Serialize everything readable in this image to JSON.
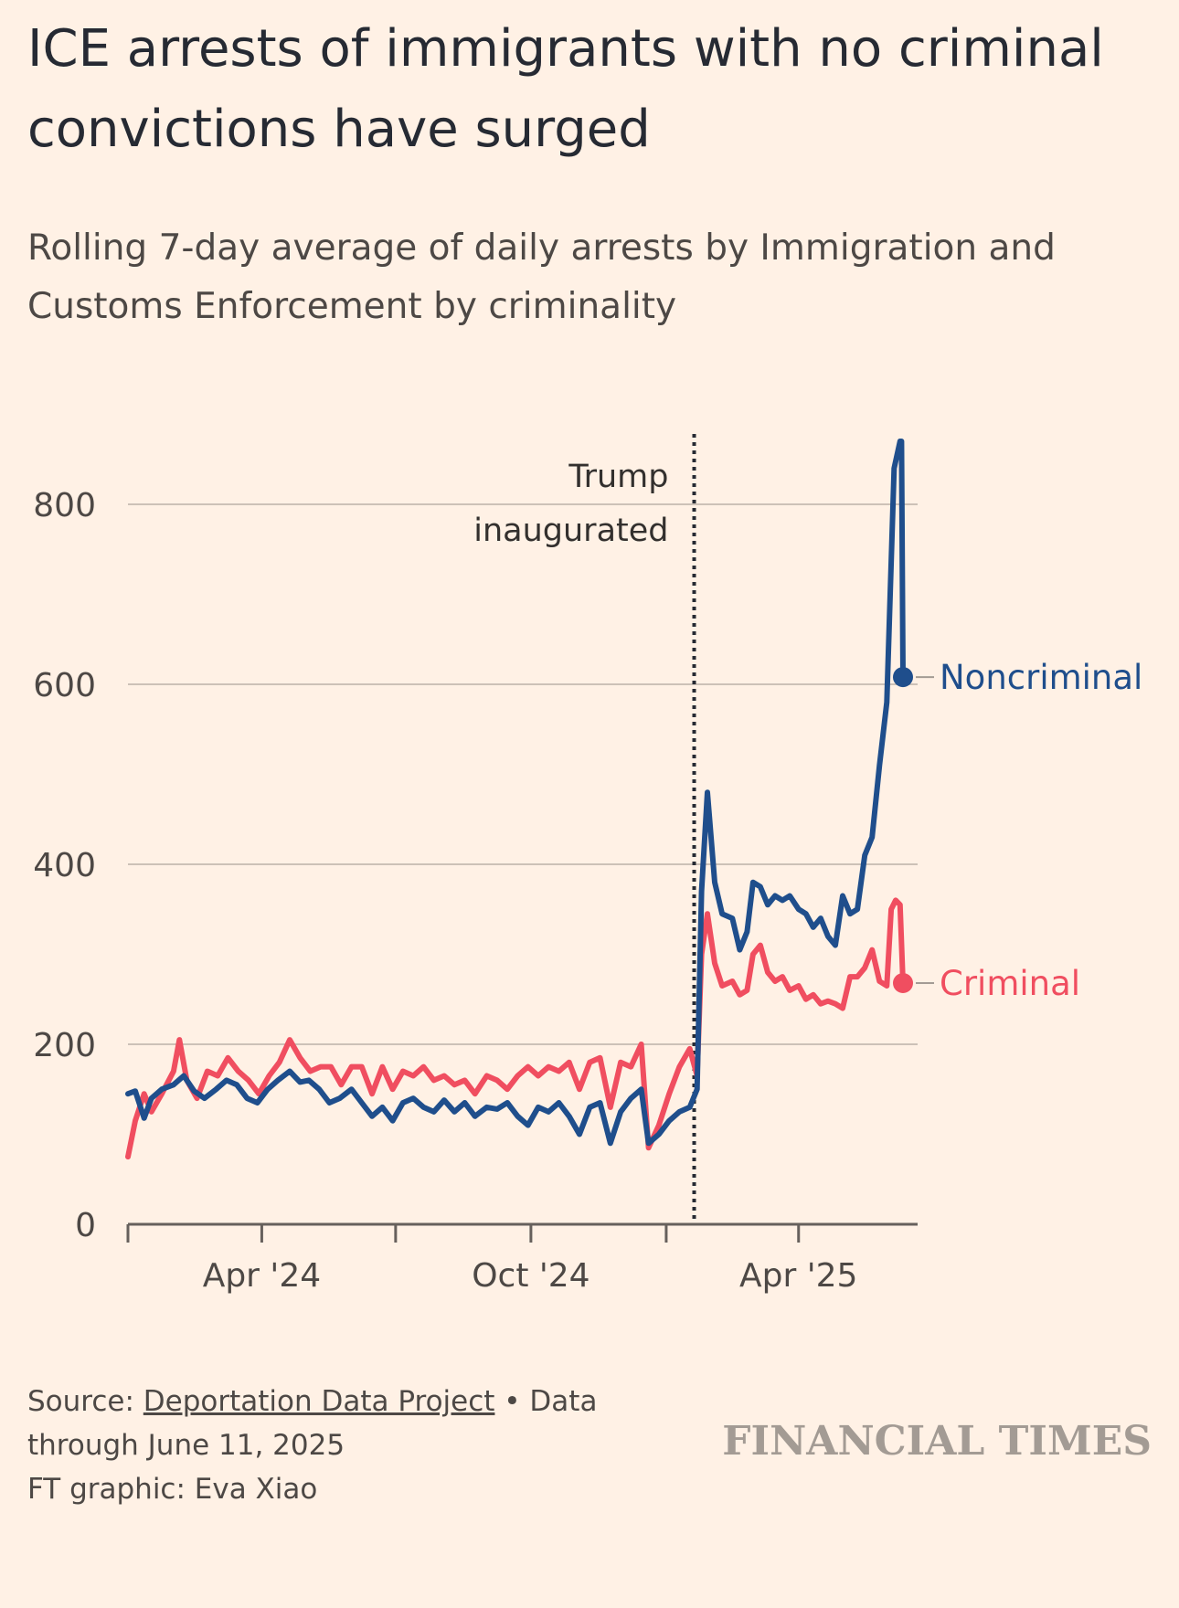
{
  "header": {
    "title": "ICE arrests of immigrants with no criminal convictions have surged",
    "subtitle": "Rolling 7-day average of daily arrests by Immigration and Customs Enforcement by criminality"
  },
  "footer": {
    "source_prefix": "Source: ",
    "source_link": "Deportation Data Project",
    "source_suffix": " • Data through June 11, 2025",
    "credit": "FT graphic: Eva Xiao",
    "logo": "FINANCIAL TIMES"
  },
  "chart_data": {
    "type": "line",
    "title": "",
    "xlabel": "",
    "ylabel": "",
    "x_axis": {
      "type": "date",
      "range": [
        "2024-01-01",
        "2025-06-11"
      ],
      "ticks": [
        {
          "date": "2024-01-01",
          "label": ""
        },
        {
          "date": "2024-04-01",
          "label": "Apr '24"
        },
        {
          "date": "2024-07-01",
          "label": ""
        },
        {
          "date": "2024-10-01",
          "label": "Oct '24"
        },
        {
          "date": "2025-01-01",
          "label": ""
        },
        {
          "date": "2025-04-01",
          "label": "Apr '25"
        }
      ]
    },
    "y_axis": {
      "range": [
        0,
        870
      ],
      "ticks": [
        0,
        200,
        400,
        600,
        800
      ]
    },
    "grid": true,
    "annotation": {
      "date": "2025-01-20",
      "label_line1": "Trump",
      "label_line2": "inaugurated"
    },
    "series": [
      {
        "name": "Noncriminal",
        "color": "#1f4e8c",
        "points": [
          [
            "2024-01-01",
            145
          ],
          [
            "2024-01-06",
            148
          ],
          [
            "2024-01-12",
            118
          ],
          [
            "2024-01-17",
            140
          ],
          [
            "2024-01-24",
            150
          ],
          [
            "2024-02-01",
            155
          ],
          [
            "2024-02-08",
            165
          ],
          [
            "2024-02-15",
            148
          ],
          [
            "2024-02-22",
            140
          ],
          [
            "2024-03-01",
            150
          ],
          [
            "2024-03-08",
            160
          ],
          [
            "2024-03-15",
            155
          ],
          [
            "2024-03-22",
            140
          ],
          [
            "2024-03-29",
            135
          ],
          [
            "2024-04-05",
            150
          ],
          [
            "2024-04-12",
            160
          ],
          [
            "2024-04-20",
            170
          ],
          [
            "2024-04-27",
            158
          ],
          [
            "2024-05-03",
            160
          ],
          [
            "2024-05-10",
            150
          ],
          [
            "2024-05-17",
            135
          ],
          [
            "2024-05-24",
            140
          ],
          [
            "2024-06-01",
            150
          ],
          [
            "2024-06-08",
            135
          ],
          [
            "2024-06-15",
            120
          ],
          [
            "2024-06-22",
            130
          ],
          [
            "2024-06-29",
            115
          ],
          [
            "2024-07-06",
            135
          ],
          [
            "2024-07-13",
            140
          ],
          [
            "2024-07-20",
            130
          ],
          [
            "2024-07-27",
            125
          ],
          [
            "2024-08-03",
            138
          ],
          [
            "2024-08-10",
            125
          ],
          [
            "2024-08-17",
            135
          ],
          [
            "2024-08-24",
            120
          ],
          [
            "2024-09-01",
            130
          ],
          [
            "2024-09-08",
            128
          ],
          [
            "2024-09-15",
            135
          ],
          [
            "2024-09-22",
            120
          ],
          [
            "2024-09-29",
            110
          ],
          [
            "2024-10-06",
            130
          ],
          [
            "2024-10-13",
            125
          ],
          [
            "2024-10-20",
            135
          ],
          [
            "2024-10-27",
            120
          ],
          [
            "2024-11-03",
            100
          ],
          [
            "2024-11-10",
            130
          ],
          [
            "2024-11-17",
            135
          ],
          [
            "2024-11-24",
            90
          ],
          [
            "2024-12-01",
            125
          ],
          [
            "2024-12-08",
            140
          ],
          [
            "2024-12-15",
            150
          ],
          [
            "2024-12-20",
            90
          ],
          [
            "2024-12-27",
            100
          ],
          [
            "2025-01-03",
            115
          ],
          [
            "2025-01-10",
            125
          ],
          [
            "2025-01-17",
            130
          ],
          [
            "2025-01-22",
            150
          ],
          [
            "2025-01-25",
            370
          ],
          [
            "2025-01-29",
            480
          ],
          [
            "2025-02-03",
            380
          ],
          [
            "2025-02-08",
            345
          ],
          [
            "2025-02-15",
            340
          ],
          [
            "2025-02-20",
            305
          ],
          [
            "2025-02-25",
            325
          ],
          [
            "2025-03-01",
            380
          ],
          [
            "2025-03-06",
            375
          ],
          [
            "2025-03-11",
            355
          ],
          [
            "2025-03-16",
            365
          ],
          [
            "2025-03-21",
            360
          ],
          [
            "2025-03-26",
            365
          ],
          [
            "2025-04-01",
            350
          ],
          [
            "2025-04-06",
            345
          ],
          [
            "2025-04-11",
            330
          ],
          [
            "2025-04-16",
            340
          ],
          [
            "2025-04-21",
            320
          ],
          [
            "2025-04-26",
            310
          ],
          [
            "2025-05-01",
            365
          ],
          [
            "2025-05-06",
            345
          ],
          [
            "2025-05-11",
            350
          ],
          [
            "2025-05-16",
            410
          ],
          [
            "2025-05-21",
            430
          ],
          [
            "2025-05-26",
            510
          ],
          [
            "2025-05-31",
            580
          ],
          [
            "2025-06-05",
            840
          ],
          [
            "2025-06-09",
            870
          ],
          [
            "2025-06-10",
            870
          ],
          [
            "2025-06-11",
            608
          ]
        ]
      },
      {
        "name": "Criminal",
        "color": "#f04e60",
        "points": [
          [
            "2024-01-01",
            75
          ],
          [
            "2024-01-06",
            115
          ],
          [
            "2024-01-12",
            145
          ],
          [
            "2024-01-17",
            125
          ],
          [
            "2024-01-24",
            145
          ],
          [
            "2024-02-01",
            170
          ],
          [
            "2024-02-05",
            205
          ],
          [
            "2024-02-10",
            160
          ],
          [
            "2024-02-17",
            140
          ],
          [
            "2024-02-24",
            170
          ],
          [
            "2024-03-02",
            165
          ],
          [
            "2024-03-09",
            185
          ],
          [
            "2024-03-16",
            170
          ],
          [
            "2024-03-23",
            160
          ],
          [
            "2024-03-30",
            145
          ],
          [
            "2024-04-06",
            165
          ],
          [
            "2024-04-13",
            180
          ],
          [
            "2024-04-20",
            205
          ],
          [
            "2024-04-27",
            185
          ],
          [
            "2024-05-04",
            170
          ],
          [
            "2024-05-11",
            175
          ],
          [
            "2024-05-18",
            175
          ],
          [
            "2024-05-25",
            155
          ],
          [
            "2024-06-01",
            175
          ],
          [
            "2024-06-08",
            175
          ],
          [
            "2024-06-15",
            145
          ],
          [
            "2024-06-22",
            175
          ],
          [
            "2024-06-29",
            150
          ],
          [
            "2024-07-06",
            170
          ],
          [
            "2024-07-13",
            165
          ],
          [
            "2024-07-20",
            175
          ],
          [
            "2024-07-27",
            160
          ],
          [
            "2024-08-03",
            165
          ],
          [
            "2024-08-10",
            155
          ],
          [
            "2024-08-17",
            160
          ],
          [
            "2024-08-24",
            145
          ],
          [
            "2024-09-01",
            165
          ],
          [
            "2024-09-08",
            160
          ],
          [
            "2024-09-15",
            150
          ],
          [
            "2024-09-22",
            165
          ],
          [
            "2024-09-29",
            175
          ],
          [
            "2024-10-06",
            165
          ],
          [
            "2024-10-13",
            175
          ],
          [
            "2024-10-20",
            170
          ],
          [
            "2024-10-27",
            180
          ],
          [
            "2024-11-03",
            150
          ],
          [
            "2024-11-10",
            180
          ],
          [
            "2024-11-17",
            185
          ],
          [
            "2024-11-24",
            130
          ],
          [
            "2024-12-01",
            180
          ],
          [
            "2024-12-08",
            175
          ],
          [
            "2024-12-15",
            200
          ],
          [
            "2024-12-20",
            85
          ],
          [
            "2024-12-27",
            110
          ],
          [
            "2025-01-03",
            145
          ],
          [
            "2025-01-10",
            175
          ],
          [
            "2025-01-17",
            195
          ],
          [
            "2025-01-22",
            165
          ],
          [
            "2025-01-25",
            300
          ],
          [
            "2025-01-29",
            345
          ],
          [
            "2025-02-03",
            290
          ],
          [
            "2025-02-08",
            265
          ],
          [
            "2025-02-15",
            270
          ],
          [
            "2025-02-20",
            255
          ],
          [
            "2025-02-25",
            260
          ],
          [
            "2025-03-01",
            300
          ],
          [
            "2025-03-06",
            310
          ],
          [
            "2025-03-11",
            280
          ],
          [
            "2025-03-16",
            270
          ],
          [
            "2025-03-21",
            275
          ],
          [
            "2025-03-26",
            260
          ],
          [
            "2025-04-01",
            265
          ],
          [
            "2025-04-06",
            250
          ],
          [
            "2025-04-11",
            255
          ],
          [
            "2025-04-16",
            245
          ],
          [
            "2025-04-21",
            248
          ],
          [
            "2025-04-26",
            245
          ],
          [
            "2025-05-01",
            240
          ],
          [
            "2025-05-06",
            275
          ],
          [
            "2025-05-11",
            275
          ],
          [
            "2025-05-16",
            285
          ],
          [
            "2025-05-21",
            305
          ],
          [
            "2025-05-26",
            270
          ],
          [
            "2025-05-31",
            265
          ],
          [
            "2025-06-03",
            350
          ],
          [
            "2025-06-06",
            360
          ],
          [
            "2025-06-09",
            355
          ],
          [
            "2025-06-11",
            268
          ]
        ]
      }
    ]
  }
}
